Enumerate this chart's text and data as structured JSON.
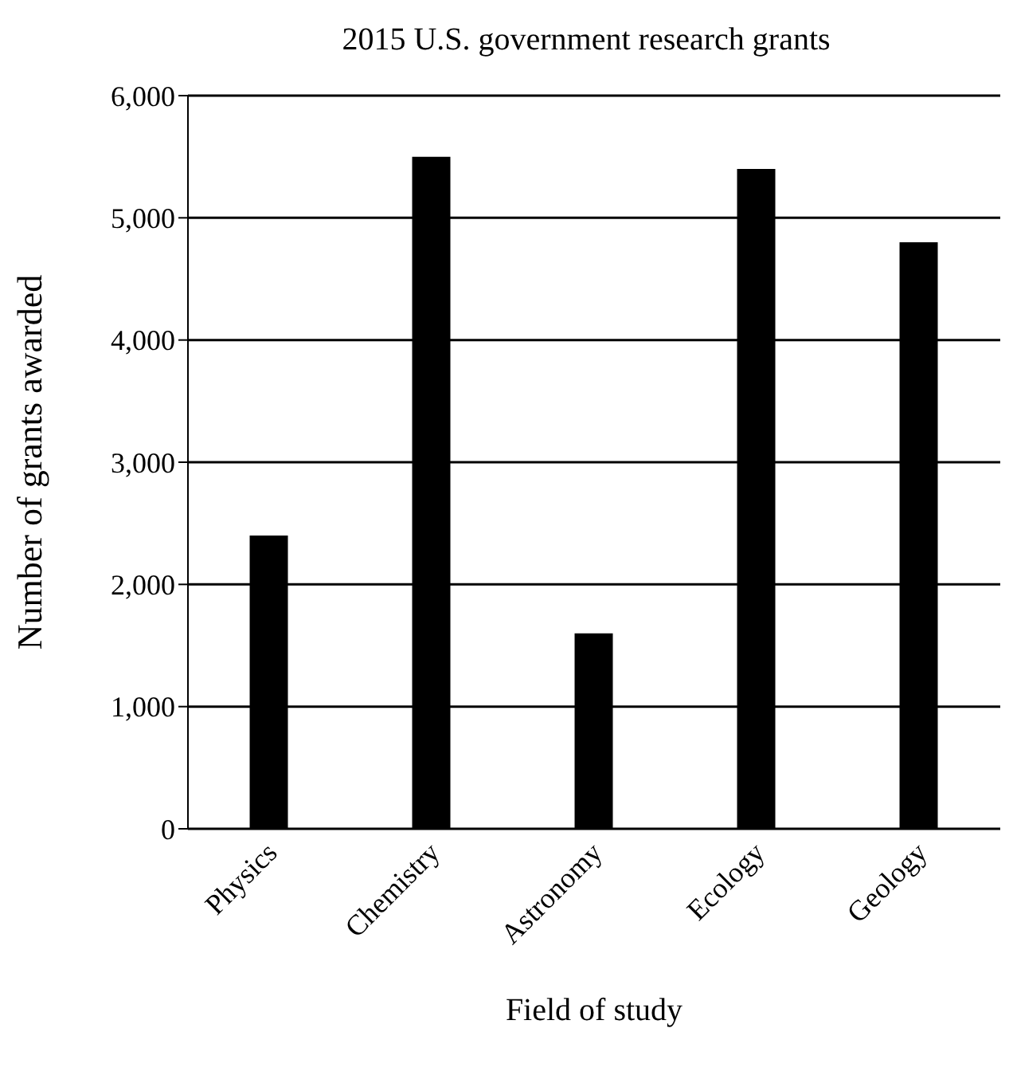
{
  "chart_data": {
    "type": "bar",
    "title": "2015 U.S. government research grants",
    "xlabel": "Field of study",
    "ylabel": "Number of grants awarded",
    "categories": [
      "Physics",
      "Chemistry",
      "Astronomy",
      "Ecology",
      "Geology"
    ],
    "values": [
      2400,
      5500,
      1600,
      5400,
      4800
    ],
    "color": "#000000",
    "ylim": [
      0,
      6000
    ],
    "yticks": [
      0,
      {
        "value": 1000,
        "label": "1,000"
      },
      {
        "value": 2000,
        "label": "2,000"
      },
      {
        "value": 3000,
        "label": "3,000"
      },
      {
        "value": 4000,
        "label": "4,000"
      },
      {
        "value": 5000,
        "label": "5,000"
      },
      {
        "value": 6000,
        "label": "6,000"
      }
    ],
    "grid": "y"
  }
}
